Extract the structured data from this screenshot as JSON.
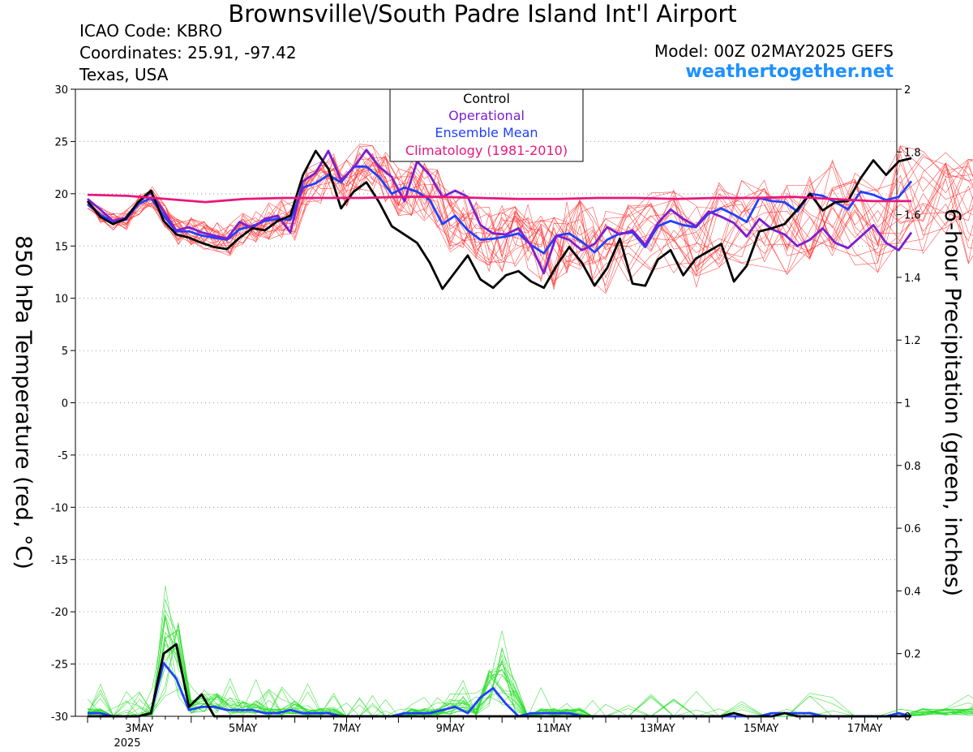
{
  "header": {
    "title": "Brownsville\\/South Padre Island Int'l Airport",
    "icao": "ICAO Code: KBRO",
    "coordinates": "Coordinates: 25.91, -97.42",
    "region": "Texas, USA",
    "model": "Model: 00Z 02MAY2025 GEFS",
    "site": "weathertogether.net"
  },
  "colors": {
    "members_temp": "#ff3030",
    "members_precip": "#22dd22",
    "control": "#000000",
    "operational": "#7b1fd1",
    "ensemble_mean": "#2040ff",
    "climatology": "#e8177d",
    "site": "#1e90ff",
    "grid": "#999999"
  },
  "chart_data": {
    "type": "line",
    "title": "Brownsville\\/South Padre Island Int'l Airport",
    "ylabel": "850 hPa Temperature (red, °C)",
    "y2label": "6-hour Precipitation (green, inches)",
    "ylim": [
      -30,
      30
    ],
    "y2lim": [
      0,
      2
    ],
    "yticks": [
      "30",
      "25",
      "20",
      "15",
      "10",
      "5",
      "0",
      "-5",
      "-10",
      "-15",
      "-20",
      "-25",
      "-30"
    ],
    "y2ticks": [
      "2",
      "1.8",
      "1.6",
      "1.4",
      "1.2",
      "1",
      "0.8",
      "0.6",
      "0.4",
      "0.2",
      "0"
    ],
    "x_unit": "days since 00Z 2 MAY 2025",
    "xlim": [
      0,
      16
    ],
    "xtick_positions": [
      1,
      3,
      5,
      7,
      9,
      11,
      13,
      15
    ],
    "xticks": [
      "3MAY",
      "5MAY",
      "7MAY",
      "9MAY",
      "11MAY",
      "13MAY",
      "15MAY",
      "17MAY"
    ],
    "xtick_year": "2025",
    "grid": true,
    "legend": {
      "placement": "top-center",
      "entries": [
        "Control",
        "Operational",
        "Ensemble Mean",
        "Climatology (1981-2010)"
      ]
    },
    "series": [
      {
        "name": "Control",
        "axis": "left",
        "values": [
          19.3,
          17.8,
          17.1,
          17.6,
          19.2,
          20.3,
          17.4,
          16.1,
          15.8,
          15.3,
          14.9,
          14.7,
          15.8,
          16.7,
          16.5,
          17.4,
          17.9,
          21.8,
          24.1,
          22.4,
          18.6,
          20.2,
          21.1,
          19.2,
          16.9,
          16.1,
          15.3,
          13.4,
          10.9,
          12.5,
          14.1,
          11.8,
          11.0,
          12.2,
          12.6,
          11.6,
          11.0,
          13.1,
          14.9,
          13.4,
          11.2,
          12.9,
          15.7,
          11.4,
          11.2,
          13.7,
          14.6,
          12.2,
          13.8,
          14.5,
          15.2,
          11.6,
          13.1,
          16.4,
          16.7,
          17.1,
          18.5,
          20.0,
          18.4,
          19.2,
          19.3,
          21.5,
          23.2,
          21.8,
          23.1,
          23.4
        ]
      },
      {
        "name": "Operational",
        "axis": "left",
        "values": [
          19.5,
          18.5,
          17.4,
          17.7,
          19.2,
          20.1,
          18.3,
          16.5,
          16.8,
          16.3,
          16.0,
          15.7,
          17.3,
          16.7,
          17.6,
          17.9,
          16.3,
          21.2,
          22.0,
          24.1,
          21.3,
          22.5,
          24.2,
          22.6,
          21.6,
          19.3,
          23.1,
          21.8,
          19.7,
          20.3,
          19.7,
          17.0,
          16.2,
          16.1,
          16.7,
          15.0,
          12.4,
          16.0,
          15.6,
          14.6,
          15.2,
          16.8,
          16.1,
          16.5,
          15.1,
          17.2,
          18.5,
          17.6,
          16.9,
          18.3,
          17.8,
          17.2,
          15.9,
          17.6,
          16.6,
          16.1,
          15.0,
          15.6,
          16.7,
          15.3,
          14.8,
          15.9,
          17.0,
          15.3,
          14.6,
          16.3
        ]
      },
      {
        "name": "Ensemble Mean",
        "axis": "left",
        "values": [
          19.0,
          18.0,
          17.3,
          17.5,
          19.0,
          19.6,
          17.9,
          16.4,
          16.4,
          16.0,
          15.8,
          15.6,
          16.6,
          16.9,
          17.4,
          17.6,
          17.5,
          20.6,
          21.0,
          21.8,
          21.1,
          22.6,
          22.6,
          21.6,
          20.0,
          20.6,
          20.2,
          19.4,
          17.1,
          17.9,
          16.5,
          15.6,
          15.7,
          15.9,
          16.2,
          15.1,
          14.3,
          16.0,
          16.2,
          15.4,
          14.4,
          15.6,
          16.2,
          16.3,
          14.9,
          16.9,
          17.4,
          17.0,
          16.8,
          18.1,
          18.6,
          18.0,
          17.3,
          19.6,
          19.3,
          19.2,
          18.3,
          20.0,
          19.8,
          19.2,
          18.5,
          20.2,
          19.9,
          19.4,
          19.7,
          21.2
        ]
      },
      {
        "name": "Climatology (1981-2010)",
        "axis": "left",
        "values": [
          19.9,
          19.8,
          19.5,
          19.2,
          19.5,
          19.6,
          19.6,
          19.6,
          19.7,
          19.7,
          19.6,
          19.5,
          19.5,
          19.6,
          19.6,
          19.5,
          19.6,
          19.6,
          19.7,
          19.5,
          19.3,
          19.3
        ]
      },
      {
        "name": "Control",
        "axis": "right",
        "values": [
          0,
          0,
          0,
          0,
          0,
          0.01,
          0.2,
          0.23,
          0.03,
          0.07,
          0,
          0,
          0,
          0,
          0,
          0,
          0,
          0,
          0,
          0,
          0,
          0,
          0,
          0,
          0,
          0,
          0,
          0,
          0,
          0,
          0,
          0,
          0,
          0,
          0,
          0,
          0,
          0,
          0,
          0,
          0,
          0,
          0,
          0,
          0,
          0,
          0,
          0,
          0,
          0,
          0,
          0.01,
          0,
          0,
          0,
          0.01,
          0,
          0,
          0,
          0,
          0,
          0,
          0,
          0,
          0,
          0
        ]
      },
      {
        "name": "Ensemble Mean",
        "axis": "right",
        "values": [
          0.01,
          0.01,
          0,
          0,
          0,
          0.01,
          0.17,
          0.12,
          0.02,
          0.03,
          0.03,
          0.02,
          0.02,
          0.02,
          0.01,
          0.01,
          0.02,
          0.01,
          0.01,
          0.01,
          0,
          0,
          0,
          0,
          0,
          0.01,
          0.01,
          0.01,
          0.02,
          0.03,
          0.01,
          0.06,
          0.09,
          0.04,
          0,
          0.01,
          0.01,
          0.01,
          0.01,
          0,
          0,
          0,
          0,
          0,
          0,
          0,
          0,
          0,
          0,
          0,
          0,
          0,
          0,
          0,
          0.01,
          0.01,
          0.01,
          0.01,
          0,
          0,
          0,
          0,
          0,
          0,
          0.01,
          0
        ]
      }
    ]
  }
}
